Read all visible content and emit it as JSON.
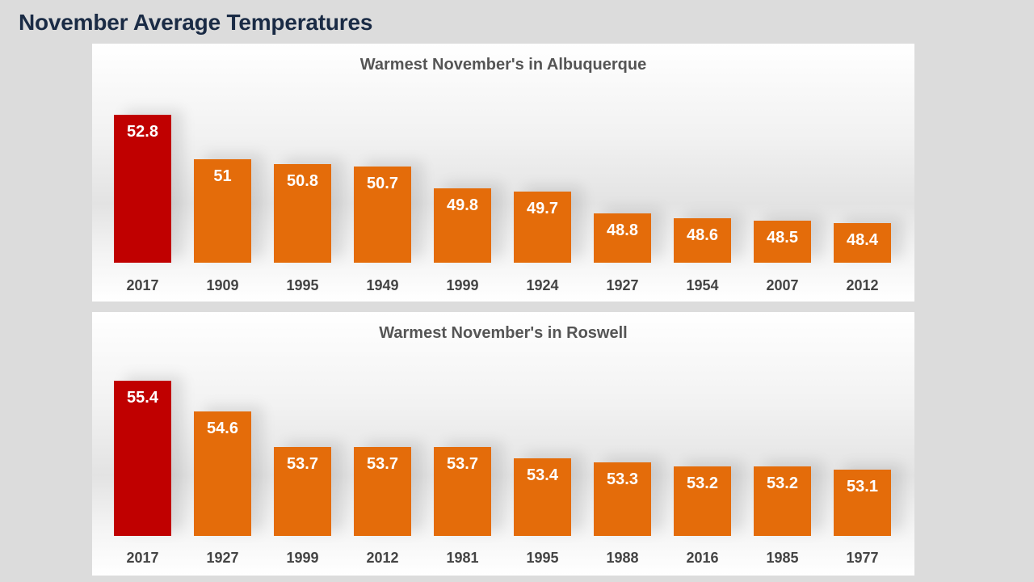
{
  "slide": {
    "title": "November Average Temperatures"
  },
  "colors": {
    "highlight": "#c00000",
    "bar": "#e46c0a",
    "label": "#ffffff"
  },
  "chart_data": [
    {
      "type": "bar",
      "title": "Warmest November's in Albuquerque",
      "categories": [
        "2017",
        "1909",
        "1995",
        "1949",
        "1999",
        "1924",
        "1927",
        "1954",
        "2007",
        "2012"
      ],
      "values": [
        52.8,
        51,
        50.8,
        50.7,
        49.8,
        49.7,
        48.8,
        48.6,
        48.5,
        48.4
      ],
      "labels": [
        "52.8",
        "51",
        "50.8",
        "50.7",
        "49.8",
        "49.7",
        "48.8",
        "48.6",
        "48.5",
        "48.4"
      ],
      "highlight_index": 0,
      "ylim": [
        46.8,
        52.8
      ],
      "xlabel": "",
      "ylabel": "",
      "grid": false,
      "legend": "none"
    },
    {
      "type": "bar",
      "title": "Warmest November's in Roswell",
      "categories": [
        "2017",
        "1927",
        "1999",
        "2012",
        "1981",
        "1995",
        "1988",
        "2016",
        "1985",
        "1977"
      ],
      "values": [
        55.4,
        54.6,
        53.7,
        53.7,
        53.7,
        53.4,
        53.3,
        53.2,
        53.2,
        53.1
      ],
      "labels": [
        "55.4",
        "54.6",
        "53.7",
        "53.7",
        "53.7",
        "53.4",
        "53.3",
        "53.2",
        "53.2",
        "53.1"
      ],
      "highlight_index": 0,
      "ylim": [
        51.4,
        55.4
      ],
      "xlabel": "",
      "ylabel": "",
      "grid": false,
      "legend": "none"
    }
  ]
}
